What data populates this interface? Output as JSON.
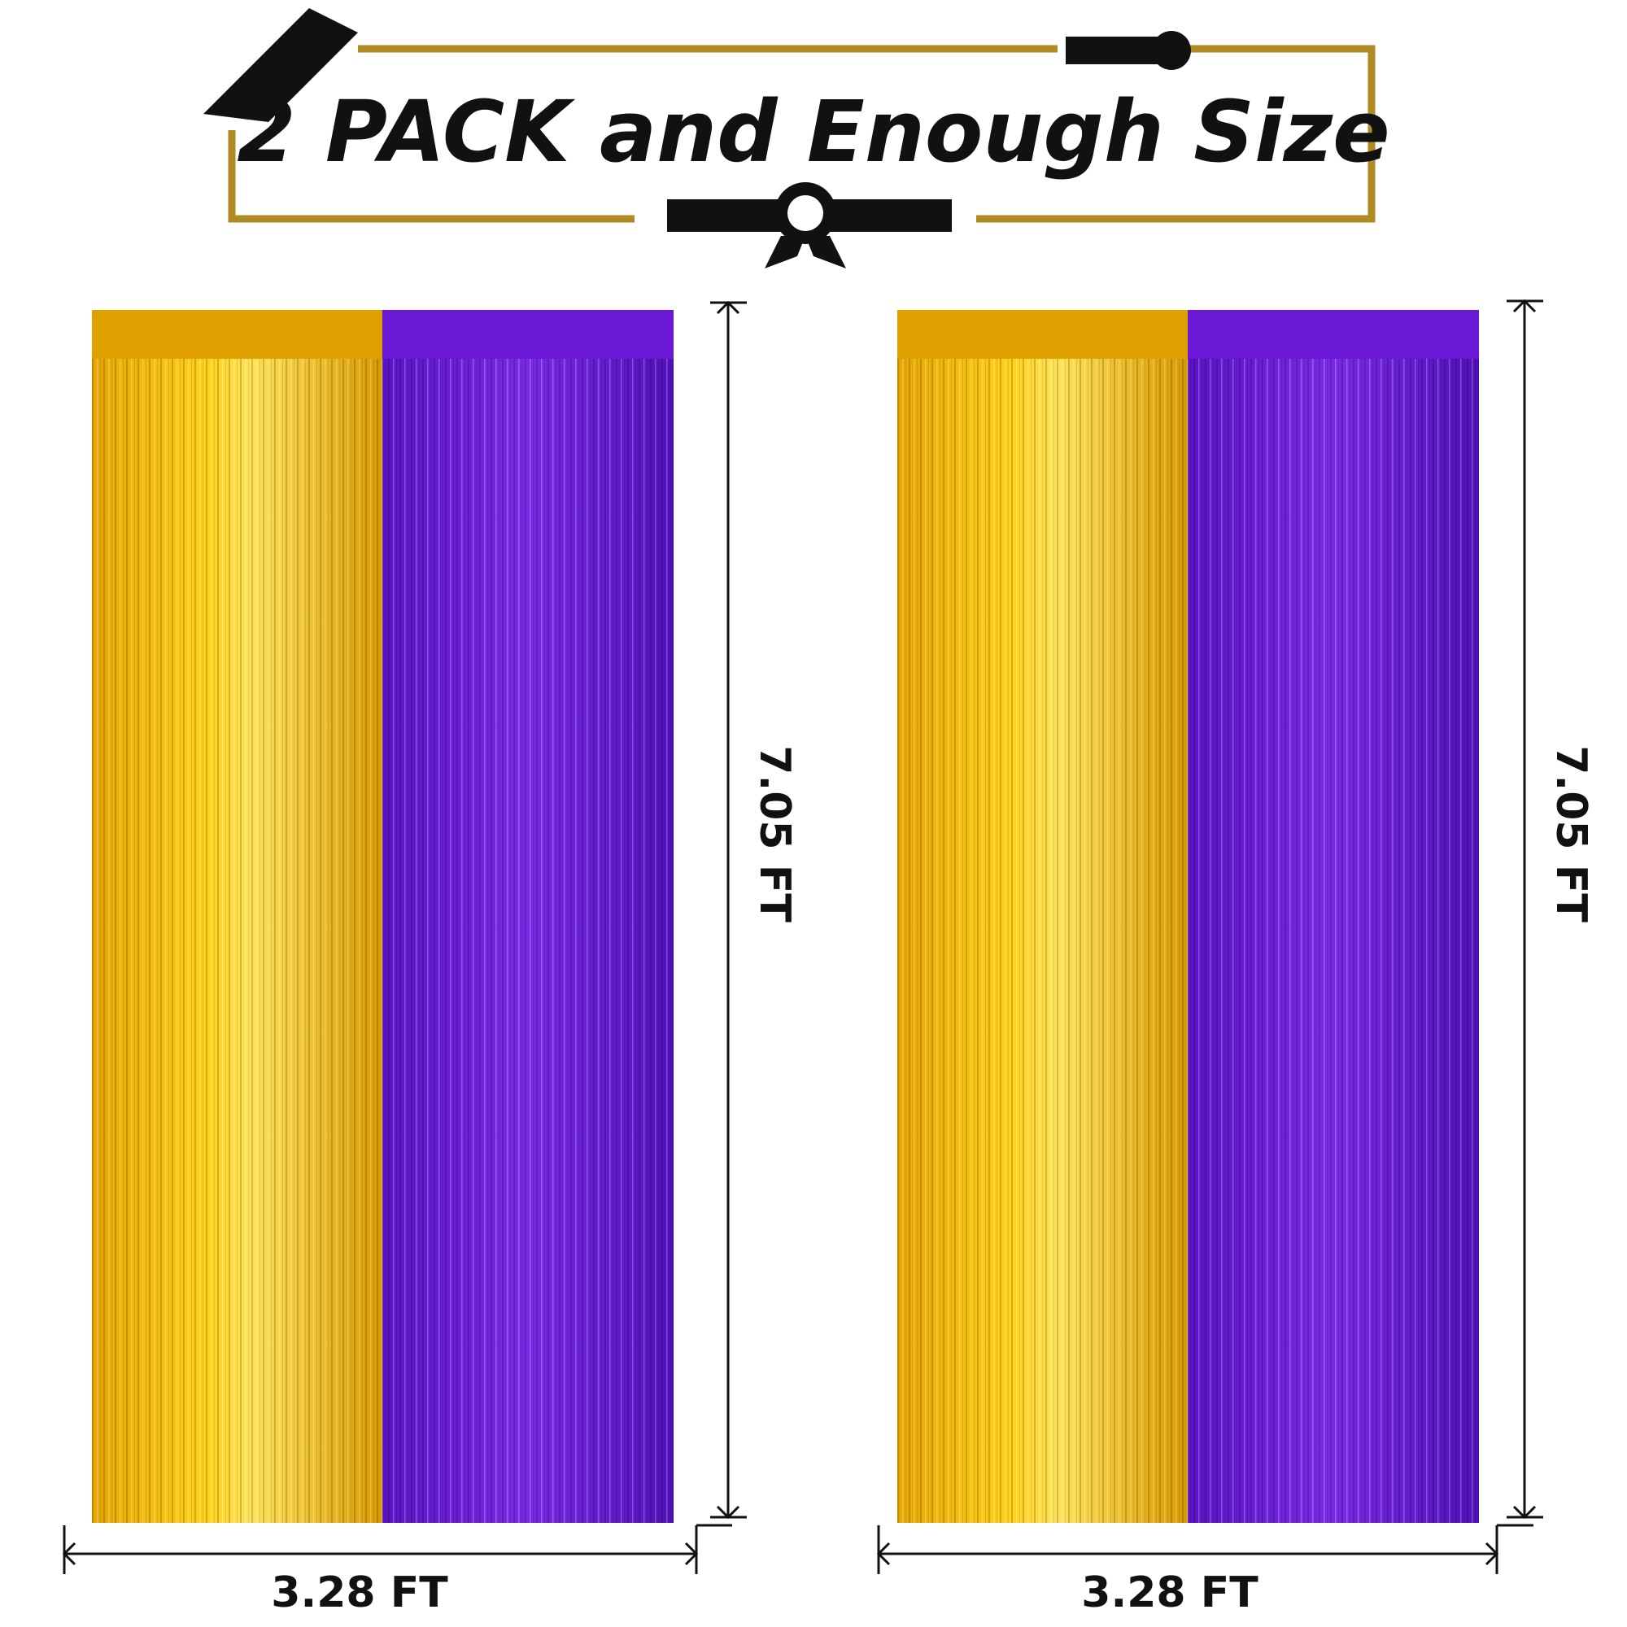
{
  "header": {
    "title": "2 PACK and Enough Size"
  },
  "curtains": [
    {
      "height_label": "7.05 FT",
      "width_label": "3.28 FT"
    },
    {
      "height_label": "7.05 FT",
      "width_label": "3.28 FT"
    }
  ]
}
